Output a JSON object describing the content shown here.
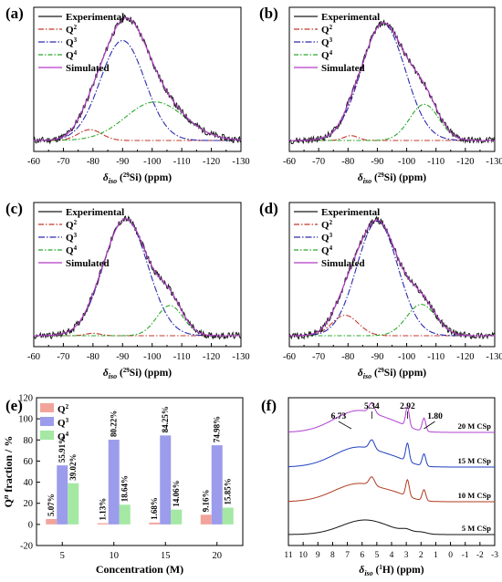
{
  "figure": {
    "colors": {
      "experimental": "#1a1a1a",
      "q2": "#c0392b",
      "q3": "#2b2bb0",
      "q4": "#2ca82c",
      "simulated": "#b43cc8",
      "highlight": "#00d8e8",
      "bar_q2": "#f2a49a",
      "bar_q3": "#9c9cec",
      "bar_q4": "#a4e8a4",
      "h5": "#111111",
      "h10": "#b03a20",
      "h15": "#1f3fc0",
      "h20": "#b040d0"
    }
  },
  "chart_data": [
    {
      "panel": "(a)",
      "type": "line",
      "xlabel_main": "δ",
      "xlabel_sub": "iso",
      "xlabel_nucleus": "Si",
      "xlabel_mass": "29",
      "xlabel_unit": " (ppm)",
      "xlim": [
        -60,
        -130
      ],
      "x_ticks": [
        "-60",
        "-70",
        "-80",
        "-90",
        "-100",
        "-110",
        "-120",
        "-130"
      ],
      "legend": [
        "Experimental",
        "Q",
        "Q",
        "Q",
        "Simulated"
      ],
      "legend_sup": [
        "",
        "2",
        "3",
        "4",
        ""
      ],
      "components": {
        "q2": {
          "center": -79,
          "width": 4,
          "height": 0.09
        },
        "q3": {
          "center": -90,
          "width": 7.5,
          "height": 0.83
        },
        "q4": {
          "center": -101,
          "width": 10,
          "height": 0.32
        }
      }
    },
    {
      "panel": "(b)",
      "type": "line",
      "xlabel_main": "δ",
      "xlabel_sub": "iso",
      "xlabel_nucleus": "Si",
      "xlabel_mass": "29",
      "xlabel_unit": " (ppm)",
      "xlim": [
        -60,
        -130
      ],
      "x_ticks": [
        "-60",
        "-70",
        "-80",
        "-90",
        "-100",
        "-110",
        "-120",
        "-130"
      ],
      "legend": [
        "Experimental",
        "Q",
        "Q",
        "Q",
        "Simulated"
      ],
      "legend_sup": [
        "",
        "2",
        "3",
        "4",
        ""
      ],
      "components": {
        "q2": {
          "center": -81,
          "width": 2.5,
          "height": 0.04
        },
        "q3": {
          "center": -92,
          "width": 7.5,
          "height": 0.97
        },
        "q4": {
          "center": -106,
          "width": 5,
          "height": 0.3
        }
      }
    },
    {
      "panel": "(c)",
      "type": "line",
      "xlabel_main": "δ",
      "xlabel_sub": "iso",
      "xlabel_nucleus": "Si",
      "xlabel_mass": "29",
      "xlabel_unit": " (ppm)",
      "xlim": [
        -60,
        -130
      ],
      "x_ticks": [
        "-60",
        "-70",
        "-80",
        "-90",
        "-100",
        "-110",
        "-120",
        "-130"
      ],
      "legend": [
        "Experimental",
        "Q",
        "Q",
        "Q",
        "Simulated"
      ],
      "legend_sup": [
        "",
        "2",
        "3",
        "4",
        ""
      ],
      "components": {
        "q2": {
          "center": -80,
          "width": 2.5,
          "height": 0.02
        },
        "q3": {
          "center": -91,
          "width": 7.5,
          "height": 0.97
        },
        "q4": {
          "center": -106,
          "width": 4.5,
          "height": 0.25
        }
      }
    },
    {
      "panel": "(d)",
      "type": "line",
      "xlabel_main": "δ",
      "xlabel_sub": "iso",
      "xlabel_nucleus": "Si",
      "xlabel_mass": "29",
      "xlabel_unit": " (ppm)",
      "xlim": [
        -60,
        -130
      ],
      "x_ticks": [
        "-60",
        "-70",
        "-80",
        "-90",
        "-100",
        "-110",
        "-120",
        "-130"
      ],
      "legend": [
        "Experimental",
        "Q",
        "Q",
        "Q",
        "Simulated"
      ],
      "legend_sup": [
        "",
        "2",
        "3",
        "4",
        ""
      ],
      "components": {
        "q2": {
          "center": -79,
          "width": 4.5,
          "height": 0.17
        },
        "q3": {
          "center": -90,
          "width": 7,
          "height": 0.95
        },
        "q4": {
          "center": -105,
          "width": 5,
          "height": 0.26
        }
      }
    },
    {
      "panel": "(e)",
      "type": "bar",
      "xlabel": "Concentration (M)",
      "ylabel_main": "Q",
      "ylabel_sup": "n",
      "ylabel_rest": " fraction / %",
      "categories": [
        "5",
        "10",
        "15",
        "20"
      ],
      "ylim": [
        -20,
        120
      ],
      "y_ticks": [
        "-20",
        "0",
        "20",
        "40",
        "60",
        "80",
        "100",
        "120"
      ],
      "legend": [
        "Q",
        "Q",
        "Q"
      ],
      "legend_sup": [
        "2",
        "3",
        "4"
      ],
      "series": [
        {
          "name": "Q2",
          "values": [
            5.07,
            1.13,
            1.68,
            9.16
          ],
          "labels": [
            "5.07%",
            "1.13%",
            "1.68%",
            "9.16%"
          ]
        },
        {
          "name": "Q3",
          "values": [
            55.91,
            80.22,
            84.25,
            74.98
          ],
          "labels": [
            "55.91%",
            "80.22%",
            "84.25%",
            "74.98%"
          ]
        },
        {
          "name": "Q4",
          "values": [
            39.02,
            18.64,
            14.06,
            15.85
          ],
          "labels": [
            "39.02%",
            "18.64%",
            "14.06%",
            "15.85%"
          ]
        }
      ]
    },
    {
      "panel": "(f)",
      "type": "line",
      "xlabel_main": "δ",
      "xlabel_sub": "iso",
      "xlabel_nucleus": "H",
      "xlabel_mass": "1",
      "xlabel_unit": " (ppm)",
      "xlim": [
        11,
        -3
      ],
      "x_ticks": [
        "11",
        "10",
        "9",
        "8",
        "7",
        "6",
        "5",
        "4",
        "3",
        "2",
        "1",
        "0",
        "-1",
        "-2",
        "-3"
      ],
      "highlight_bands": [
        [
          6.4,
          7.3
        ],
        [
          4.9,
          5.6
        ],
        [
          2.5,
          3.3
        ],
        [
          1.3,
          2.3
        ]
      ],
      "peak_labels": [
        {
          "x": 6.73,
          "text": "6.73"
        },
        {
          "x": 5.34,
          "text": "5.34"
        },
        {
          "x": 2.92,
          "text": "2.92"
        },
        {
          "x": 1.8,
          "text": "1.80"
        }
      ],
      "series": [
        {
          "name": "5 M CSp",
          "offset": 0
        },
        {
          "name": "10 M CSp",
          "offset": 1
        },
        {
          "name": "15 M CSp",
          "offset": 2
        },
        {
          "name": "20 M CSp",
          "offset": 3
        }
      ]
    }
  ]
}
